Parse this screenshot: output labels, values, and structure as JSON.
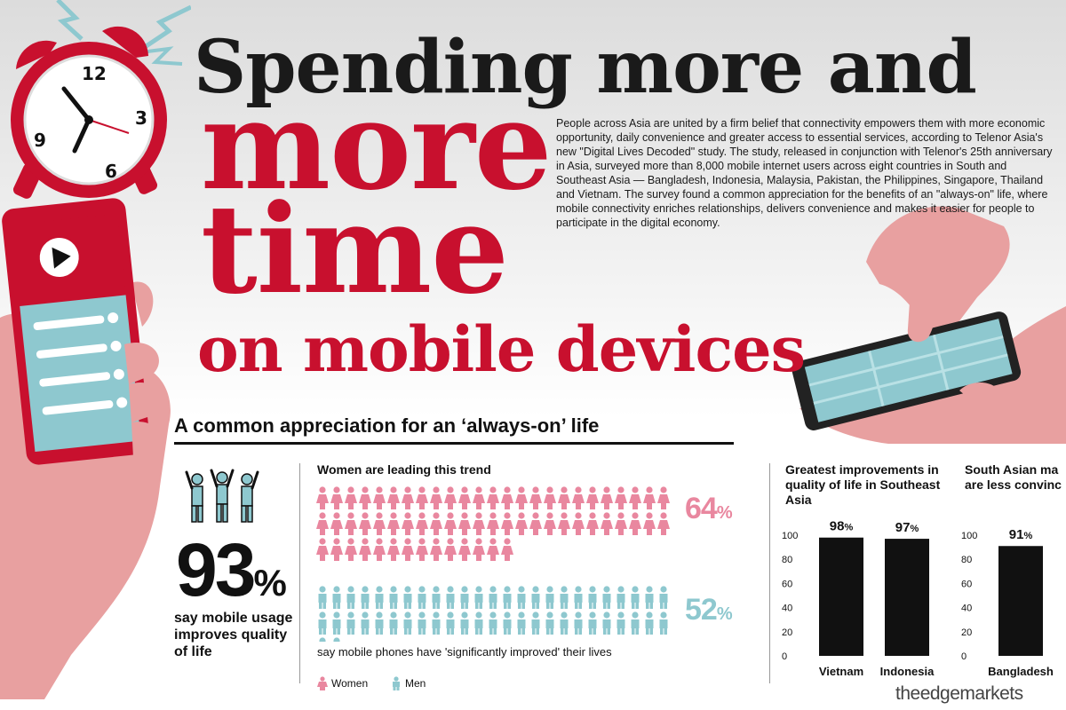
{
  "title": {
    "line1": "Spending more and",
    "line2": "more",
    "line3": "time",
    "line4": "on mobile devices"
  },
  "intro": {
    "p1": "People across Asia are united by a firm belief that connectivity empowers them with more economic opportunity, daily convenience and greater access to essential services, according to Telenor Asia's new \"Digital Lives Decoded\" study. The study, released in conjunction with Telenor's 25th anniversary in Asia, surveyed more than 8,000 mobile internet users across eight countries in South and Southeast Asia — Bangladesh, Indonesia, Malaysia, Pakistan, the Philippines, Singapore, Thailand and Vietnam.",
    "p2": "The survey found a common appreciation for the benefits of an \"always-on\" life, where mobile connectivity enriches relationships, delivers convenience and makes it easier for people to participate in the digital economy."
  },
  "section": {
    "heading": "A common appreciation for an ‘always-on’ life"
  },
  "stat93": {
    "number": "93",
    "unit": "%",
    "caption": "say mobile usage improves quality of life"
  },
  "colors": {
    "red": "#c8102e",
    "women": "#e9879f",
    "men": "#8ec8cf",
    "bar": "#111111",
    "skin": "#e8a0a0"
  },
  "icons": {
    "people": "people-cheering-icon",
    "clock": "alarm-clock-icon",
    "phone": "smartphone-icon",
    "play": "play-icon"
  },
  "clock": {
    "n12": "12",
    "n3": "3",
    "n6": "6",
    "n9": "9"
  },
  "women_trend": {
    "title": "Women are leading this trend",
    "caption": "say mobile phones have 'significantly improved' their lives",
    "women_label": "64",
    "men_label": "52",
    "unit": "%",
    "legend_women": "Women",
    "legend_men": "Men"
  },
  "chart_data": [
    {
      "type": "bar",
      "title": "Greatest improvements in quality of life in Southeast Asia",
      "categories": [
        "Vietnam",
        "Indonesia"
      ],
      "values": [
        98,
        97
      ],
      "labels": [
        "98",
        "97"
      ],
      "unit": "%",
      "ylim": [
        0,
        100
      ],
      "yticks": [
        "100",
        "80",
        "60",
        "40",
        "20",
        "0"
      ]
    },
    {
      "type": "bar",
      "title": "South Asian ma are less convinc",
      "categories": [
        "Bangladesh"
      ],
      "values": [
        91
      ],
      "labels": [
        "91"
      ],
      "unit": "%",
      "ylim": [
        0,
        100
      ],
      "yticks": [
        "100",
        "80",
        "60",
        "40",
        "20",
        "0"
      ]
    },
    {
      "type": "pictogram",
      "title": "Women are leading this trend",
      "series": [
        {
          "name": "Women",
          "value": 64
        },
        {
          "name": "Men",
          "value": 52
        }
      ],
      "unit": "%"
    }
  ],
  "brand": "theedgemarkets"
}
